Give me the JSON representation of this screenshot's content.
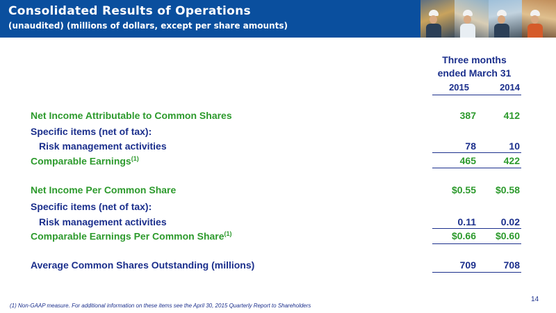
{
  "header": {
    "title": "Consolidated Results of Operations",
    "subtitle": "(unaudited) (millions of dollars, except per share amounts)"
  },
  "table": {
    "period_line1": "Three months",
    "period_line2": "ended March 31",
    "years": [
      "2015",
      "2014"
    ],
    "rows": [
      {
        "label": "Net Income Attributable to Common Shares",
        "note": "",
        "v2015": "387",
        "v2014": "412"
      },
      {
        "label": "Specific items (net of tax):",
        "note": "",
        "v2015": "",
        "v2014": ""
      },
      {
        "label": "Risk management activities",
        "note": "",
        "v2015": "78",
        "v2014": "10"
      },
      {
        "label": "Comparable Earnings",
        "note": "(1)",
        "v2015": "465",
        "v2014": "422"
      },
      {
        "label": "Net Income Per Common Share",
        "note": "",
        "v2015": "$0.55",
        "v2014": "$0.58"
      },
      {
        "label": "Specific items (net of tax):",
        "note": "",
        "v2015": "",
        "v2014": ""
      },
      {
        "label": "Risk management activities",
        "note": "",
        "v2015": "0.11",
        "v2014": "0.02"
      },
      {
        "label": "Comparable Earnings Per Common Share",
        "note": "(1)",
        "v2015": "$0.66",
        "v2014": "$0.60"
      },
      {
        "label": "Average Common Shares Outstanding (millions)",
        "note": "",
        "v2015": "709",
        "v2014": "708"
      }
    ]
  },
  "footnote": "(1) Non-GAAP measure.  For additional information on these items see the April 30, 2015 Quarterly Report to Shareholders",
  "page_number": "14",
  "colors": {
    "header_bg": "#0a4f9e",
    "green_text": "#2d9a2d",
    "blue_text": "#1b2f8c"
  }
}
